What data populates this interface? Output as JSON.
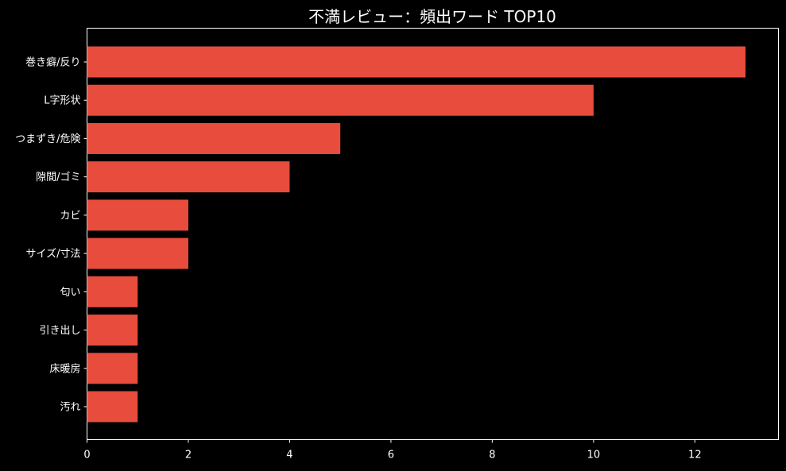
{
  "chart_data": {
    "type": "bar",
    "orientation": "horizontal",
    "title": "不満レビュー：頻出ワード TOP10",
    "xlabel": "",
    "ylabel": "",
    "categories": [
      "巻き癖/反り",
      "L字形状",
      "つまずき/危険",
      "隙間/ゴミ",
      "カビ",
      "サイズ/寸法",
      "匂い",
      "引き出し",
      "床暖房",
      "汚れ"
    ],
    "values": [
      13,
      10,
      5,
      4,
      2,
      2,
      1,
      1,
      1,
      1
    ],
    "xlim": [
      0,
      13.65
    ],
    "xticks": [
      0,
      2,
      4,
      6,
      8,
      10,
      12
    ],
    "grid": false,
    "legend": "none",
    "colors": {
      "background": "#000000",
      "bar": "#e74c3c",
      "axis": "#ffffff",
      "text": "#ffffff"
    }
  }
}
